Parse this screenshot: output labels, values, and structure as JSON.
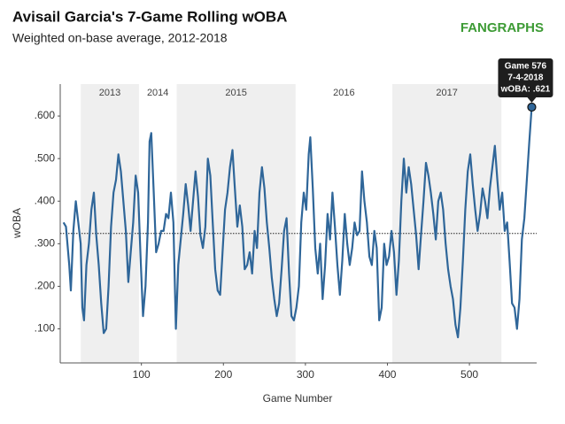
{
  "chart_data": {
    "type": "line",
    "title": "Avisail Garcia's 7-Game Rolling wOBA",
    "subtitle": "Weighted on-base average, 2012-2018",
    "logo": "FANGRAPHS",
    "x_label": "Game Number",
    "y_label": "wOBA",
    "xlim": [
      1,
      582
    ],
    "ylim": [
      0.02,
      0.675
    ],
    "xticks": [
      100,
      200,
      300,
      400,
      500
    ],
    "yticks": [
      {
        "value": 0.1,
        "label": ".100"
      },
      {
        "value": 0.2,
        "label": ".200"
      },
      {
        "value": 0.3,
        "label": ".300"
      },
      {
        "value": 0.4,
        "label": ".400"
      },
      {
        "value": 0.5,
        "label": ".500"
      },
      {
        "value": 0.6,
        "label": ".600"
      }
    ],
    "reference_line": 0.324,
    "seasons": [
      {
        "label": "2013",
        "start": 26,
        "end": 97,
        "shaded": true
      },
      {
        "label": "2014",
        "start": 97,
        "end": 143,
        "shaded": false
      },
      {
        "label": "2015",
        "start": 143,
        "end": 288,
        "shaded": true
      },
      {
        "label": "2016",
        "start": 288,
        "end": 406,
        "shaded": false
      },
      {
        "label": "2017",
        "start": 406,
        "end": 539,
        "shaded": true
      }
    ],
    "annotation": {
      "lines": [
        "Game 576",
        "7-4-2018",
        "wOBA: .621"
      ],
      "x": 576,
      "y": 0.621
    },
    "series": [
      {
        "name": "wOBA",
        "color": "#2f6699",
        "x": [
          5,
          8,
          12,
          14,
          17,
          20,
          23,
          26,
          28,
          30,
          33,
          36,
          39,
          42,
          45,
          48,
          51,
          54,
          57,
          60,
          63,
          66,
          69,
          72,
          75,
          78,
          81,
          84,
          87,
          90,
          93,
          96,
          99,
          102,
          105,
          108,
          110,
          112,
          115,
          118,
          121,
          124,
          127,
          130,
          133,
          136,
          139,
          142,
          145,
          148,
          151,
          154,
          157,
          160,
          163,
          166,
          169,
          172,
          175,
          178,
          181,
          184,
          187,
          190,
          193,
          196,
          199,
          202,
          205,
          208,
          211,
          214,
          217,
          220,
          223,
          226,
          229,
          232,
          235,
          238,
          241,
          244,
          247,
          250,
          253,
          256,
          259,
          262,
          265,
          268,
          271,
          274,
          277,
          280,
          283,
          286,
          289,
          292,
          295,
          298,
          301,
          304,
          306,
          309,
          312,
          315,
          318,
          321,
          324,
          327,
          330,
          333,
          336,
          339,
          342,
          345,
          348,
          351,
          354,
          357,
          360,
          363,
          366,
          369,
          372,
          375,
          378,
          381,
          384,
          387,
          390,
          393,
          396,
          399,
          402,
          405,
          408,
          411,
          414,
          417,
          420,
          423,
          426,
          429,
          432,
          435,
          438,
          441,
          444,
          447,
          450,
          453,
          456,
          459,
          462,
          465,
          468,
          471,
          474,
          477,
          480,
          483,
          486,
          489,
          492,
          495,
          498,
          501,
          504,
          507,
          510,
          513,
          516,
          519,
          522,
          525,
          528,
          531,
          534,
          537,
          540,
          543,
          546,
          549,
          552,
          555,
          558,
          561,
          564,
          567,
          570,
          573,
          576
        ],
        "values": [
          0.35,
          0.34,
          0.25,
          0.19,
          0.33,
          0.4,
          0.35,
          0.3,
          0.15,
          0.12,
          0.25,
          0.3,
          0.38,
          0.42,
          0.32,
          0.25,
          0.16,
          0.09,
          0.1,
          0.2,
          0.34,
          0.42,
          0.45,
          0.51,
          0.47,
          0.4,
          0.33,
          0.21,
          0.28,
          0.35,
          0.46,
          0.42,
          0.27,
          0.13,
          0.2,
          0.35,
          0.54,
          0.56,
          0.42,
          0.28,
          0.3,
          0.33,
          0.33,
          0.37,
          0.36,
          0.42,
          0.35,
          0.1,
          0.25,
          0.31,
          0.37,
          0.44,
          0.39,
          0.33,
          0.4,
          0.47,
          0.41,
          0.32,
          0.29,
          0.34,
          0.5,
          0.46,
          0.35,
          0.24,
          0.19,
          0.18,
          0.28,
          0.38,
          0.42,
          0.48,
          0.52,
          0.43,
          0.34,
          0.39,
          0.34,
          0.24,
          0.25,
          0.28,
          0.23,
          0.33,
          0.29,
          0.42,
          0.48,
          0.43,
          0.35,
          0.29,
          0.22,
          0.17,
          0.13,
          0.16,
          0.24,
          0.33,
          0.36,
          0.23,
          0.13,
          0.12,
          0.15,
          0.2,
          0.35,
          0.42,
          0.38,
          0.51,
          0.55,
          0.43,
          0.29,
          0.23,
          0.3,
          0.17,
          0.25,
          0.37,
          0.31,
          0.42,
          0.34,
          0.25,
          0.18,
          0.26,
          0.37,
          0.3,
          0.25,
          0.29,
          0.35,
          0.32,
          0.33,
          0.47,
          0.4,
          0.35,
          0.27,
          0.25,
          0.33,
          0.29,
          0.12,
          0.15,
          0.3,
          0.25,
          0.27,
          0.33,
          0.28,
          0.18,
          0.26,
          0.4,
          0.5,
          0.42,
          0.48,
          0.44,
          0.38,
          0.32,
          0.24,
          0.32,
          0.4,
          0.49,
          0.46,
          0.42,
          0.37,
          0.31,
          0.4,
          0.42,
          0.38,
          0.3,
          0.24,
          0.2,
          0.17,
          0.11,
          0.08,
          0.15,
          0.26,
          0.38,
          0.47,
          0.51,
          0.44,
          0.38,
          0.33,
          0.37,
          0.43,
          0.4,
          0.36,
          0.43,
          0.48,
          0.53,
          0.45,
          0.38,
          0.42,
          0.33,
          0.35,
          0.26,
          0.16,
          0.15,
          0.1,
          0.17,
          0.31,
          0.36,
          0.45,
          0.54,
          0.621
        ]
      }
    ]
  }
}
